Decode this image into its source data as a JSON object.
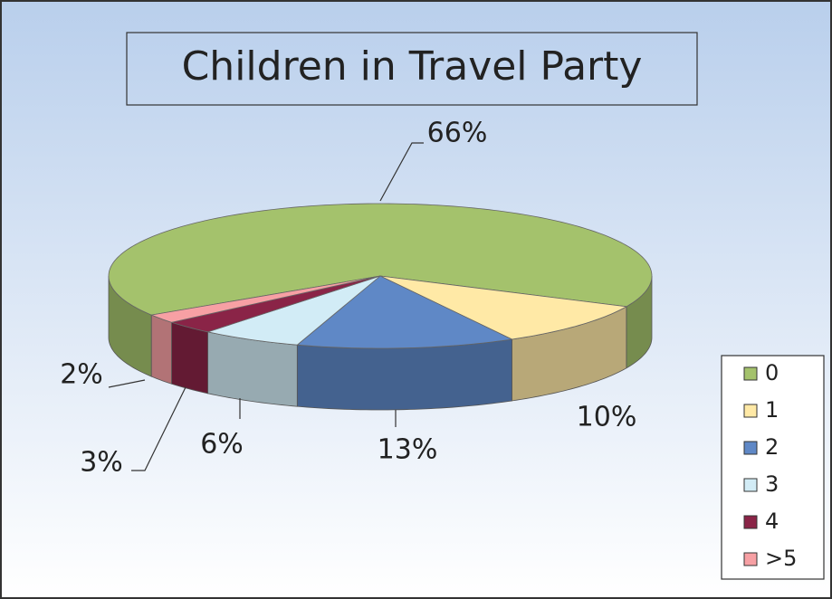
{
  "chart_data": {
    "type": "pie",
    "title": "Children in Travel Party",
    "categories": [
      "0",
      "1",
      "2",
      "3",
      "4",
      ">5"
    ],
    "values": [
      66,
      10,
      13,
      6,
      3,
      2
    ],
    "value_labels": [
      "66%",
      "10%",
      "13%",
      "6%",
      "3%",
      "2%"
    ],
    "colors": [
      "#a4c26c",
      "#ffe9a6",
      "#5f88c6",
      "#d2ecf6",
      "#8a2447",
      "#f7a0a4"
    ],
    "legend": "right"
  }
}
